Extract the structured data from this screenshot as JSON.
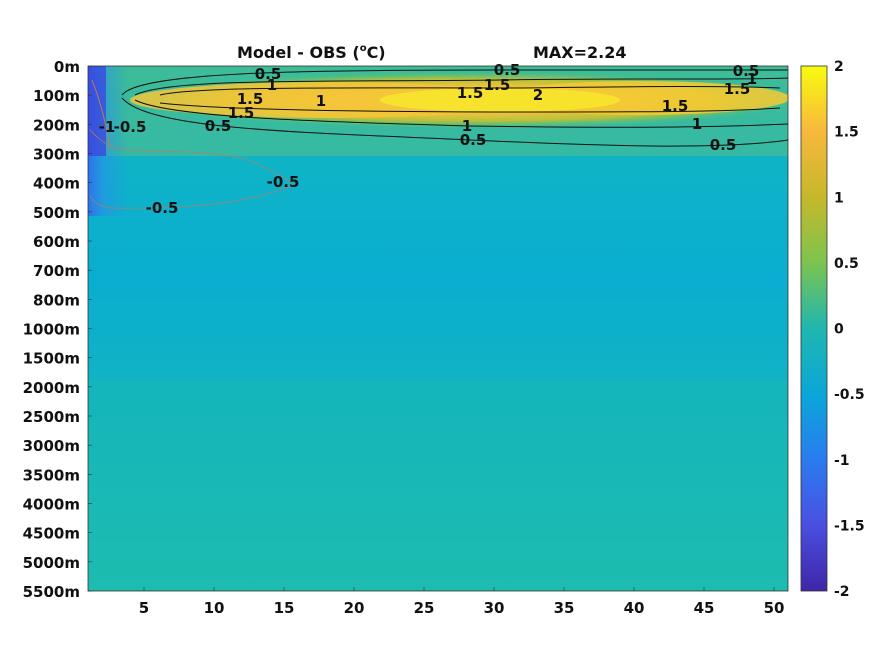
{
  "chart_data": {
    "type": "heatmap",
    "title": "Model - OBS (",
    "title_sup": "o",
    "title_unit": "C)",
    "max_label": "MAX=2.24",
    "xlabel": "",
    "ylabel": "",
    "x_ticks": [
      5,
      10,
      15,
      20,
      25,
      30,
      35,
      40,
      45,
      50
    ],
    "xlim": [
      1,
      51
    ],
    "y_ticks": [
      "0m",
      "100m",
      "200m",
      "300m",
      "400m",
      "500m",
      "600m",
      "700m",
      "800m",
      "1000m",
      "1500m",
      "2000m",
      "2500m",
      "3000m",
      "3500m",
      "4000m",
      "4500m",
      "5000m",
      "5500m"
    ],
    "colorbar": {
      "min": -2,
      "max": 2,
      "ticks": [
        "2",
        "1.5",
        "1",
        "0.5",
        "0",
        "-0.5",
        "-1",
        "-1.5",
        "-2"
      ],
      "colormap": "parula"
    },
    "field_summary": [
      {
        "depth": "0m",
        "value": 0.3
      },
      {
        "depth": "100m",
        "value": 1.8
      },
      {
        "depth": "200m",
        "value": 0.9
      },
      {
        "depth": "300m",
        "value": 0.2
      },
      {
        "depth": "500m",
        "value": 0.1
      },
      {
        "depth": "1000m",
        "value": -0.1
      },
      {
        "depth": "2000m",
        "value": -0.1
      },
      {
        "depth": "3000m",
        "value": 0.0
      },
      {
        "depth": "5500m",
        "value": 0.0
      }
    ],
    "contour_labels": [
      "0.5",
      "1",
      "1.5",
      "1.5",
      "0.5",
      "1",
      "0.5",
      "1.5",
      "1.5",
      "2",
      "1",
      "0.5",
      "0.5",
      "1",
      "1.5",
      "1.5",
      "1",
      "0.5",
      "-1",
      "-0.5",
      "-0.5",
      "-0.5"
    ]
  },
  "colors": {
    "contour_positive": "#111111",
    "contour_negative": "#c07a5a"
  }
}
